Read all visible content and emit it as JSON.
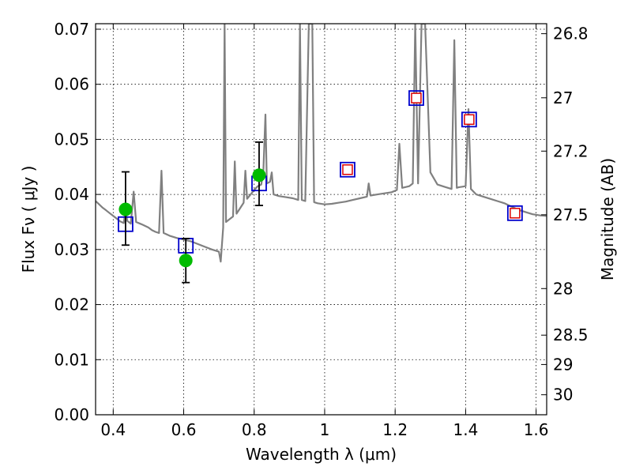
{
  "chart_data": {
    "type": "line",
    "xlabel": "Wavelength  λ (μm)",
    "ylabel": "Flux  Fν  ( μJy )",
    "y2label": "Magnitude (AB)",
    "xlim": [
      0.35,
      1.63
    ],
    "ylim": [
      0.0,
      0.071
    ],
    "grid": true,
    "xticks": [
      0.4,
      0.6,
      0.8,
      1.0,
      1.2,
      1.4,
      1.6
    ],
    "xtick_labels": [
      "0.4",
      "0.6",
      "0.8",
      "1",
      "1.2",
      "1.4",
      "1.6"
    ],
    "yticks": [
      0.0,
      0.01,
      0.02,
      0.03,
      0.04,
      0.05,
      0.06,
      0.07
    ],
    "ytick_labels": [
      "0.00",
      "0.01",
      "0.02",
      "0.03",
      "0.04",
      "0.05",
      "0.06",
      "0.07"
    ],
    "y2ticks": [
      {
        "label": "26.8",
        "value": 26.8
      },
      {
        "label": "27",
        "value": 27.0
      },
      {
        "label": "27.2",
        "value": 27.2
      },
      {
        "label": "27.5",
        "value": 27.5
      },
      {
        "label": "28",
        "value": 28.0
      },
      {
        "label": "28.5",
        "value": 28.5
      },
      {
        "label": "29",
        "value": 29.0
      },
      {
        "label": "30",
        "value": 30.0
      }
    ],
    "colors": {
      "sed_line": "#808080",
      "observed": "#00bb00",
      "model_box": "#0000cc",
      "inner_box": "#dd0000"
    },
    "series": [
      {
        "kind": "template_spectrum",
        "points": [
          [
            0.35,
            0.0388
          ],
          [
            0.36,
            0.0382
          ],
          [
            0.37,
            0.0376
          ],
          [
            0.38,
            0.0371
          ],
          [
            0.39,
            0.0366
          ],
          [
            0.4,
            0.0361
          ],
          [
            0.41,
            0.0356
          ],
          [
            0.42,
            0.0351
          ],
          [
            0.43,
            0.0348
          ],
          [
            0.435,
            0.0373
          ],
          [
            0.44,
            0.0352
          ],
          [
            0.45,
            0.0347
          ],
          [
            0.458,
            0.0405
          ],
          [
            0.465,
            0.035
          ],
          [
            0.48,
            0.0346
          ],
          [
            0.49,
            0.0343
          ],
          [
            0.5,
            0.034
          ],
          [
            0.51,
            0.0335
          ],
          [
            0.52,
            0.0332
          ],
          [
            0.53,
            0.033
          ],
          [
            0.537,
            0.0443
          ],
          [
            0.543,
            0.033
          ],
          [
            0.56,
            0.0325
          ],
          [
            0.58,
            0.0321
          ],
          [
            0.6,
            0.0318
          ],
          [
            0.62,
            0.0315
          ],
          [
            0.64,
            0.031
          ],
          [
            0.66,
            0.0305
          ],
          [
            0.68,
            0.03
          ],
          [
            0.7,
            0.0296
          ],
          [
            0.705,
            0.0278
          ],
          [
            0.712,
            0.034
          ],
          [
            0.716,
            0.071
          ],
          [
            0.72,
            0.035
          ],
          [
            0.73,
            0.0355
          ],
          [
            0.74,
            0.036
          ],
          [
            0.745,
            0.046
          ],
          [
            0.75,
            0.0365
          ],
          [
            0.76,
            0.0375
          ],
          [
            0.77,
            0.0385
          ],
          [
            0.775,
            0.0443
          ],
          [
            0.78,
            0.0392
          ],
          [
            0.79,
            0.04
          ],
          [
            0.8,
            0.0408
          ],
          [
            0.81,
            0.0415
          ],
          [
            0.82,
            0.0418
          ],
          [
            0.826,
            0.044
          ],
          [
            0.832,
            0.0545
          ],
          [
            0.836,
            0.042
          ],
          [
            0.845,
            0.0423
          ],
          [
            0.85,
            0.044
          ],
          [
            0.855,
            0.04
          ],
          [
            0.87,
            0.0397
          ],
          [
            0.89,
            0.0395
          ],
          [
            0.91,
            0.0393
          ],
          [
            0.925,
            0.039
          ],
          [
            0.93,
            0.071
          ],
          [
            0.935,
            0.039
          ],
          [
            0.945,
            0.0388
          ],
          [
            0.955,
            0.071
          ],
          [
            0.965,
            0.071
          ],
          [
            0.97,
            0.0386
          ],
          [
            0.98,
            0.0384
          ],
          [
            1.0,
            0.0382
          ],
          [
            1.02,
            0.0383
          ],
          [
            1.04,
            0.0385
          ],
          [
            1.06,
            0.0387
          ],
          [
            1.08,
            0.039
          ],
          [
            1.1,
            0.0393
          ],
          [
            1.12,
            0.0396
          ],
          [
            1.125,
            0.042
          ],
          [
            1.13,
            0.0398
          ],
          [
            1.15,
            0.04
          ],
          [
            1.17,
            0.0402
          ],
          [
            1.19,
            0.0404
          ],
          [
            1.205,
            0.0408
          ],
          [
            1.212,
            0.0492
          ],
          [
            1.22,
            0.0412
          ],
          [
            1.24,
            0.0415
          ],
          [
            1.25,
            0.042
          ],
          [
            1.257,
            0.071
          ],
          [
            1.265,
            0.042
          ],
          [
            1.275,
            0.071
          ],
          [
            1.285,
            0.071
          ],
          [
            1.3,
            0.044
          ],
          [
            1.32,
            0.0418
          ],
          [
            1.34,
            0.0414
          ],
          [
            1.36,
            0.041
          ],
          [
            1.368,
            0.068
          ],
          [
            1.375,
            0.0412
          ],
          [
            1.38,
            0.0413
          ],
          [
            1.4,
            0.0415
          ],
          [
            1.408,
            0.0555
          ],
          [
            1.415,
            0.041
          ],
          [
            1.43,
            0.04
          ],
          [
            1.45,
            0.0396
          ],
          [
            1.47,
            0.0392
          ],
          [
            1.49,
            0.0388
          ],
          [
            1.51,
            0.0384
          ],
          [
            1.53,
            0.0378
          ],
          [
            1.55,
            0.0372
          ],
          [
            1.57,
            0.0368
          ],
          [
            1.59,
            0.0364
          ],
          [
            1.61,
            0.0362
          ],
          [
            1.63,
            0.0361
          ]
        ]
      },
      {
        "kind": "observed_photometry",
        "points": [
          {
            "x": 0.435,
            "y": 0.0373,
            "yerr": [
              0.0065,
              0.0068
            ]
          },
          {
            "x": 0.606,
            "y": 0.028,
            "yerr": [
              0.004,
              0.004
            ]
          },
          {
            "x": 0.814,
            "y": 0.0435,
            "yerr": [
              0.0055,
              0.006
            ]
          }
        ]
      },
      {
        "kind": "model_photometry",
        "points": [
          {
            "x": 0.435,
            "y": 0.0346
          },
          {
            "x": 0.606,
            "y": 0.0307
          },
          {
            "x": 0.814,
            "y": 0.042
          },
          {
            "x": 1.065,
            "y": 0.0445
          },
          {
            "x": 1.26,
            "y": 0.0575
          },
          {
            "x": 1.41,
            "y": 0.0536
          },
          {
            "x": 1.54,
            "y": 0.0366
          }
        ]
      },
      {
        "kind": "model_photometry_inner",
        "points": [
          {
            "x": 1.065,
            "y": 0.0445
          },
          {
            "x": 1.26,
            "y": 0.0575
          },
          {
            "x": 1.41,
            "y": 0.0536
          },
          {
            "x": 1.54,
            "y": 0.0366
          }
        ]
      }
    ]
  }
}
